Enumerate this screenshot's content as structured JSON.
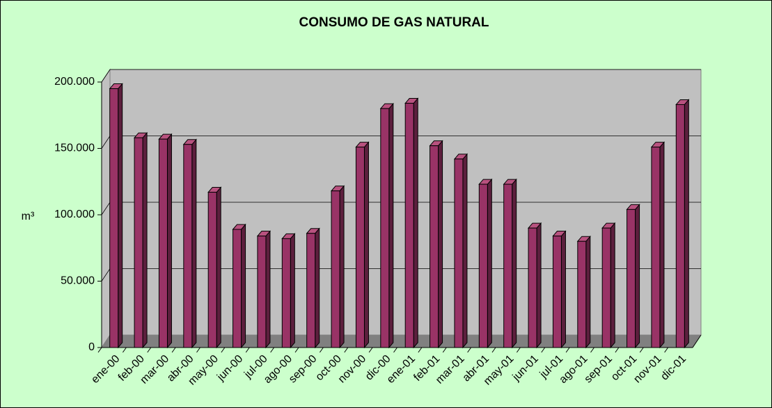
{
  "chart_data": {
    "type": "bar",
    "title": "CONSUMO DE GAS NATURAL",
    "y_label": "m³",
    "categories": [
      "ene-00",
      "feb-00",
      "mar-00",
      "abr-00",
      "may-00",
      "jun-00",
      "jul-00",
      "ago-00",
      "sep-00",
      "oct-00",
      "nov-00",
      "dic-00",
      "ene-01",
      "feb-01",
      "mar-01",
      "abr-01",
      "may-01",
      "jun-01",
      "jul-01",
      "ago-01",
      "sep-01",
      "oct-01",
      "nov-01",
      "dic-01"
    ],
    "values": [
      195000,
      158000,
      157000,
      153000,
      117000,
      89000,
      84000,
      82000,
      86000,
      118000,
      151000,
      180000,
      184000,
      152000,
      142000,
      123000,
      123000,
      90000,
      84000,
      80000,
      90000,
      104000,
      151000,
      183000
    ],
    "color": "#993366",
    "ylim": [
      0,
      200000
    ],
    "yticks": [
      0,
      {
        "value": 50000,
        "label": "50.000"
      },
      {
        "value": 100000,
        "label": "100.000"
      },
      {
        "value": 150000,
        "label": "150.000"
      },
      {
        "value": 200000,
        "label": "200.000"
      }
    ],
    "grid": true
  }
}
